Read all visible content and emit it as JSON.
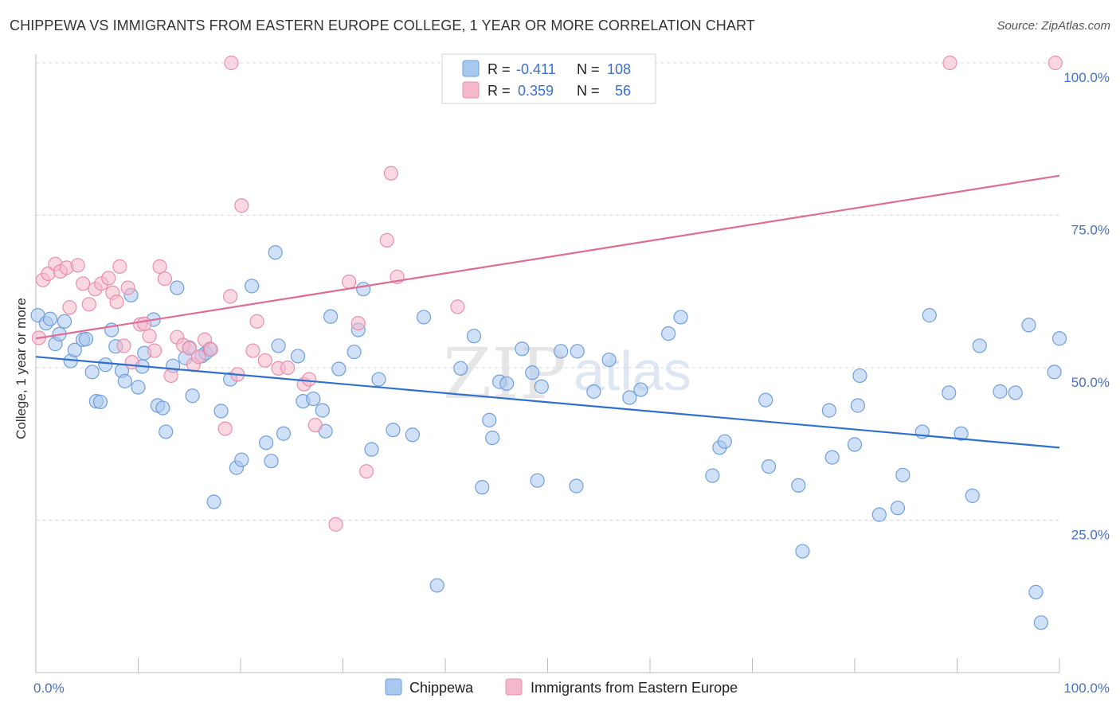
{
  "title": "CHIPPEWA VS IMMIGRANTS FROM EASTERN EUROPE COLLEGE, 1 YEAR OR MORE CORRELATION CHART",
  "source": "Source: ZipAtlas.com",
  "watermark": {
    "zip": "ZIP",
    "atlas": "atlas"
  },
  "legend": {
    "rows": [
      {
        "r_label": "R =",
        "r_value": "-0.411",
        "n_label": "N =",
        "n_value": "108",
        "color": "#a9c8f0"
      },
      {
        "r_label": "R =",
        "r_value": "0.359",
        "n_label": "N =",
        "n_value": "56",
        "color": "#f5b8ca"
      }
    ]
  },
  "bottom_legend": [
    {
      "name": "Chippewa",
      "color": "#a9c8f0"
    },
    {
      "name": "Immigrants from Eastern Europe",
      "color": "#f5b8ca"
    }
  ],
  "chart_data": {
    "type": "scatter",
    "title": "CHIPPEWA VS IMMIGRANTS FROM EASTERN EUROPE COLLEGE, 1 YEAR OR MORE CORRELATION CHART",
    "xlabel": "",
    "ylabel": "College, 1 year or more",
    "xlim": [
      0,
      100
    ],
    "ylim": [
      0,
      100
    ],
    "x_tick_labels": [
      "0.0%",
      "100.0%"
    ],
    "y_tick_labels": [
      "100.0%",
      "75.0%",
      "50.0%",
      "25.0%"
    ],
    "y_tick_values": [
      100,
      75,
      50,
      25
    ],
    "grid": true,
    "legend_position": "top-center",
    "series": [
      {
        "name": "Chippewa",
        "color": "#6f9fdc",
        "fill": "#a9c8f0",
        "trend": {
          "x": [
            0,
            100
          ],
          "y": [
            51.8,
            36.9
          ],
          "color": "#2f6fce"
        },
        "points": [
          [
            0.2,
            58.6
          ],
          [
            1.0,
            57.3
          ],
          [
            1.4,
            58.0
          ],
          [
            1.9,
            53.9
          ],
          [
            2.3,
            55.5
          ],
          [
            2.8,
            57.6
          ],
          [
            3.4,
            51.1
          ],
          [
            3.8,
            52.9
          ],
          [
            4.6,
            54.6
          ],
          [
            4.9,
            54.7
          ],
          [
            5.5,
            49.3
          ],
          [
            5.9,
            44.5
          ],
          [
            6.3,
            44.4
          ],
          [
            6.8,
            50.5
          ],
          [
            7.4,
            56.2
          ],
          [
            7.8,
            53.5
          ],
          [
            8.4,
            49.5
          ],
          [
            8.7,
            47.8
          ],
          [
            9.3,
            61.9
          ],
          [
            10.0,
            46.8
          ],
          [
            10.4,
            50.2
          ],
          [
            10.6,
            52.4
          ],
          [
            11.5,
            57.9
          ],
          [
            11.9,
            43.8
          ],
          [
            12.4,
            43.4
          ],
          [
            12.7,
            39.5
          ],
          [
            13.4,
            50.3
          ],
          [
            13.8,
            63.1
          ],
          [
            14.6,
            51.6
          ],
          [
            15.0,
            53.3
          ],
          [
            15.3,
            45.4
          ],
          [
            16.2,
            51.9
          ],
          [
            16.6,
            52.4
          ],
          [
            17.0,
            53.1
          ],
          [
            17.4,
            28.0
          ],
          [
            18.1,
            42.9
          ],
          [
            19.0,
            48.1
          ],
          [
            19.6,
            33.6
          ],
          [
            20.1,
            34.9
          ],
          [
            21.1,
            63.4
          ],
          [
            22.5,
            37.7
          ],
          [
            23.0,
            34.7
          ],
          [
            23.4,
            68.9
          ],
          [
            23.7,
            53.6
          ],
          [
            24.2,
            39.2
          ],
          [
            25.6,
            51.9
          ],
          [
            26.1,
            44.5
          ],
          [
            27.1,
            44.9
          ],
          [
            28.0,
            43.0
          ],
          [
            28.3,
            39.6
          ],
          [
            28.8,
            58.4
          ],
          [
            29.6,
            49.8
          ],
          [
            31.1,
            52.6
          ],
          [
            31.5,
            56.2
          ],
          [
            32.0,
            62.9
          ],
          [
            32.8,
            36.6
          ],
          [
            33.5,
            48.1
          ],
          [
            34.9,
            39.8
          ],
          [
            36.8,
            39.0
          ],
          [
            37.9,
            58.3
          ],
          [
            39.2,
            14.3
          ],
          [
            41.5,
            49.9
          ],
          [
            42.8,
            55.2
          ],
          [
            43.6,
            30.4
          ],
          [
            44.3,
            41.4
          ],
          [
            44.6,
            38.5
          ],
          [
            45.3,
            47.7
          ],
          [
            46.0,
            47.4
          ],
          [
            47.5,
            53.1
          ],
          [
            48.5,
            49.2
          ],
          [
            49.0,
            31.5
          ],
          [
            49.4,
            46.9
          ],
          [
            51.3,
            52.7
          ],
          [
            52.8,
            30.6
          ],
          [
            52.9,
            52.7
          ],
          [
            54.5,
            46.1
          ],
          [
            56.0,
            51.3
          ],
          [
            58.0,
            45.1
          ],
          [
            59.1,
            46.4
          ],
          [
            61.8,
            55.6
          ],
          [
            63.0,
            58.3
          ],
          [
            66.1,
            32.3
          ],
          [
            66.8,
            36.9
          ],
          [
            67.3,
            37.9
          ],
          [
            71.3,
            44.7
          ],
          [
            71.6,
            33.8
          ],
          [
            74.5,
            30.7
          ],
          [
            74.9,
            19.9
          ],
          [
            77.5,
            43.0
          ],
          [
            77.8,
            35.3
          ],
          [
            80.0,
            37.4
          ],
          [
            80.3,
            43.8
          ],
          [
            80.5,
            48.7
          ],
          [
            82.4,
            25.9
          ],
          [
            84.2,
            27.0
          ],
          [
            84.7,
            32.4
          ],
          [
            86.6,
            39.5
          ],
          [
            87.3,
            58.6
          ],
          [
            89.2,
            45.9
          ],
          [
            90.4,
            39.2
          ],
          [
            91.5,
            29.0
          ],
          [
            92.2,
            53.6
          ],
          [
            94.2,
            46.1
          ],
          [
            95.7,
            45.9
          ],
          [
            97.0,
            57.0
          ],
          [
            97.7,
            13.2
          ],
          [
            98.2,
            8.2
          ],
          [
            99.5,
            49.3
          ],
          [
            100.0,
            54.8
          ]
        ]
      },
      {
        "name": "Immigrants from Eastern Europe",
        "color": "#e98fab",
        "fill": "#f5b8ca",
        "trend": {
          "x": [
            0,
            100
          ],
          "y": [
            54.8,
            81.5
          ],
          "color": "#e06b94"
        },
        "points": [
          [
            0.3,
            54.9
          ],
          [
            0.7,
            64.4
          ],
          [
            1.2,
            65.4
          ],
          [
            1.9,
            67.0
          ],
          [
            2.4,
            65.8
          ],
          [
            3.0,
            66.4
          ],
          [
            3.3,
            59.9
          ],
          [
            4.1,
            66.8
          ],
          [
            4.6,
            63.8
          ],
          [
            5.2,
            60.4
          ],
          [
            5.8,
            62.9
          ],
          [
            6.4,
            63.8
          ],
          [
            7.1,
            64.7
          ],
          [
            7.5,
            62.3
          ],
          [
            7.9,
            60.8
          ],
          [
            8.2,
            66.6
          ],
          [
            8.6,
            53.6
          ],
          [
            9.0,
            63.1
          ],
          [
            9.4,
            50.9
          ],
          [
            10.2,
            57.1
          ],
          [
            10.6,
            57.2
          ],
          [
            11.1,
            55.2
          ],
          [
            11.6,
            52.8
          ],
          [
            12.1,
            66.6
          ],
          [
            12.6,
            64.6
          ],
          [
            13.2,
            48.7
          ],
          [
            13.8,
            55.0
          ],
          [
            14.4,
            53.7
          ],
          [
            15.0,
            53.2
          ],
          [
            15.4,
            50.5
          ],
          [
            15.9,
            51.8
          ],
          [
            16.5,
            54.6
          ],
          [
            17.1,
            53.0
          ],
          [
            18.5,
            40.0
          ],
          [
            19.0,
            61.7
          ],
          [
            19.7,
            48.9
          ],
          [
            20.1,
            76.6
          ],
          [
            21.6,
            57.6
          ],
          [
            21.2,
            52.8
          ],
          [
            22.4,
            51.2
          ],
          [
            23.7,
            49.9
          ],
          [
            24.6,
            50.0
          ],
          [
            26.2,
            47.3
          ],
          [
            26.7,
            48.1
          ],
          [
            27.3,
            40.6
          ],
          [
            29.3,
            24.3
          ],
          [
            30.6,
            64.1
          ],
          [
            31.5,
            57.3
          ],
          [
            32.3,
            33.0
          ],
          [
            34.3,
            70.9
          ],
          [
            34.7,
            81.9
          ],
          [
            35.3,
            64.9
          ],
          [
            41.2,
            60.0
          ],
          [
            19.1,
            100.0
          ],
          [
            89.3,
            100.0
          ],
          [
            99.6,
            100.0
          ]
        ]
      }
    ]
  }
}
